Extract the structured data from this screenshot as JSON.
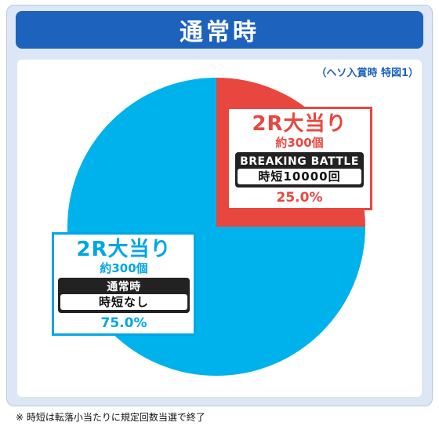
{
  "header": {
    "title": "通常時"
  },
  "subtitle": "（ヘソ入賞時 特図1）",
  "colors": {
    "blue": "#00b2ec",
    "red": "#e8473f",
    "title_bg": "#1d63bd"
  },
  "chart_data": {
    "type": "pie",
    "slices": [
      {
        "label": "2R大当り",
        "value": 25.0,
        "color": "#e8473f",
        "balls": "約300個",
        "mode": "BREAKING BATTLE",
        "jitan": "時短10000回",
        "percent_text": "25.0%"
      },
      {
        "label": "2R大当り",
        "value": 75.0,
        "color": "#00b2ec",
        "balls": "約300個",
        "mode": "通常時",
        "jitan": "時短なし",
        "percent_text": "75.0%"
      }
    ]
  },
  "footnote": "※ 時短は転落小当たりに規定回数当選で終了"
}
